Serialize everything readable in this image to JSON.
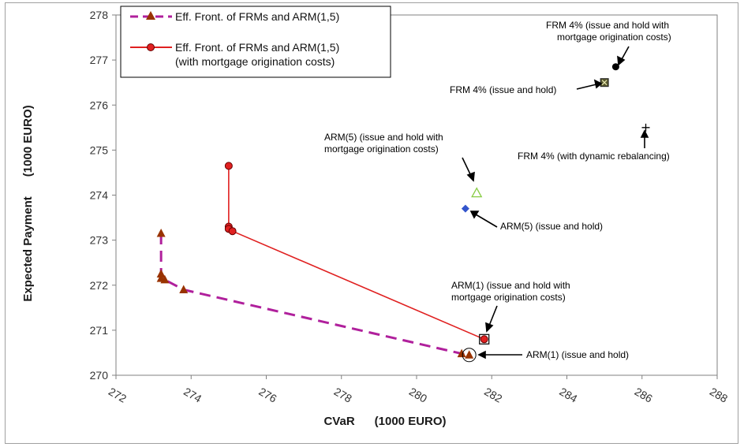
{
  "chart_data": {
    "type": "line",
    "xlabel": "CVaR      (1000 EURO)",
    "ylabel": "Expected Payment      (1000 EURO)",
    "xlim": [
      272,
      288
    ],
    "ylim": [
      270,
      278
    ],
    "x_ticks": [
      "272",
      "274",
      "276",
      "278",
      "280",
      "282",
      "284",
      "286",
      "288"
    ],
    "y_ticks": [
      "270",
      "271",
      "272",
      "273",
      "274",
      "275",
      "276",
      "277",
      "278"
    ],
    "legend_position": "top-left",
    "series": [
      {
        "name": "Eff. Front. of FRMs and ARM(1,5)",
        "color": "#b0209c",
        "marker_color": "#993300",
        "marker": "triangle",
        "line_style": "dashed",
        "x": [
          273.2,
          273.2,
          273.2,
          273.3,
          273.8,
          281.2,
          281.4
        ],
        "y": [
          273.15,
          272.25,
          272.15,
          272.12,
          271.9,
          270.48,
          270.45
        ]
      },
      {
        "name": "Eff. Front. of FRMs and ARM(1,5)\n(with mortgage origination costs)",
        "legend_line1": "Eff. Front. of FRMs and ARM(1,5)",
        "legend_line2": "(with mortgage origination costs)",
        "color": "#e02020",
        "marker_color": "#e02020",
        "marker": "circle",
        "line_style": "solid",
        "x": [
          275.0,
          275.0,
          275.0,
          275.1,
          281.8
        ],
        "y": [
          274.65,
          273.3,
          273.25,
          273.2,
          270.8
        ]
      }
    ],
    "points": [
      {
        "id": "frm-orig",
        "label": "FRM 4% (issue and hold with\nmortgage origination costs)",
        "x": 285.3,
        "y": 276.85,
        "marker": "circle",
        "color": "#000000"
      },
      {
        "id": "frm-hold",
        "label": "FRM 4% (issue and hold)",
        "x": 285.0,
        "y": 276.5,
        "marker": "square",
        "color": "#5a5a30"
      },
      {
        "id": "frm-dyn",
        "label": "FRM 4% (with dynamic rebalancing)",
        "x": 286.1,
        "y": 275.5,
        "marker": "plus",
        "color": "#000000"
      },
      {
        "id": "arm5-orig",
        "label": "ARM(5) (issue and hold with\nmortgage origination costs)",
        "x": 281.6,
        "y": 274.05,
        "marker": "triangle-open",
        "color": "#88cc44"
      },
      {
        "id": "arm5-hold",
        "label": "ARM(5) (issue and hold)",
        "x": 281.3,
        "y": 273.7,
        "marker": "diamond",
        "color": "#3355cc"
      },
      {
        "id": "arm1-orig",
        "label": "ARM(1) (issue and hold with\nmortgage origination costs)",
        "x": 281.8,
        "y": 270.8,
        "marker": "square-open",
        "color": "#000000"
      },
      {
        "id": "arm1-hold",
        "label": "ARM(1) (issue and hold)",
        "x": 281.4,
        "y": 270.45,
        "marker": "circle-open",
        "color": "#000000"
      }
    ]
  },
  "annotations": {
    "frm_orig_l1": "FRM 4% (issue and hold with",
    "frm_orig_l2": "mortgage origination costs)",
    "frm_hold": "FRM 4% (issue and hold)",
    "frm_dyn": "FRM 4% (with dynamic rebalancing)",
    "arm5_orig_l1": "ARM(5) (issue and hold with",
    "arm5_orig_l2": "mortgage origination costs)",
    "arm5_hold": "ARM(5) (issue and hold)",
    "arm1_orig_l1": "ARM(1) (issue and hold with",
    "arm1_orig_l2": "mortgage origination costs)",
    "arm1_hold": "ARM(1) (issue and hold)"
  }
}
